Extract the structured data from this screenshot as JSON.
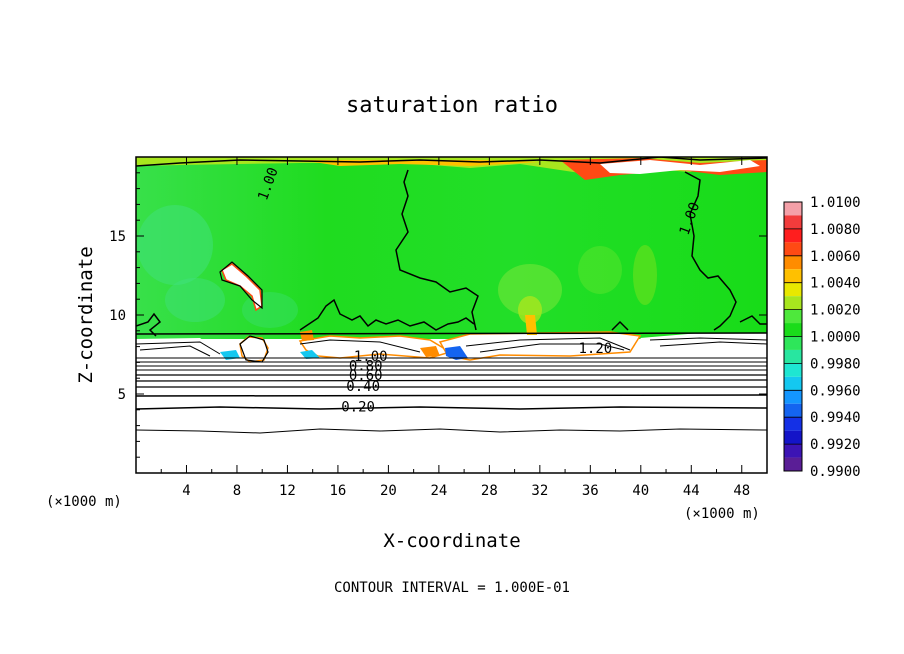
{
  "chart_data": {
    "type": "heatmap",
    "title": "saturation ratio",
    "xlabel": "X-coordinate",
    "ylabel": "Z-coordinate",
    "x_unit_left": "(×1000 m)",
    "x_unit_right": "(×1000 m)",
    "xlim": [
      0,
      50
    ],
    "ylim": [
      0,
      20
    ],
    "x_ticks": [
      4,
      8,
      12,
      16,
      20,
      24,
      28,
      32,
      36,
      40,
      44,
      48
    ],
    "y_ticks": [
      5,
      10,
      15
    ],
    "colorbar": {
      "min": 0.99,
      "max": 1.01,
      "labels": [
        "1.0100",
        "1.0080",
        "1.0060",
        "1.0040",
        "1.0020",
        "1.0000",
        "0.9980",
        "0.9960",
        "0.9940",
        "0.9920",
        "0.9900"
      ],
      "levels": [
        {
          "lo": 1.009,
          "hi": 1.01,
          "color": "#f4a0a8"
        },
        {
          "lo": 1.008,
          "hi": 1.009,
          "color": "#f23c3c"
        },
        {
          "lo": 1.007,
          "hi": 1.008,
          "color": "#ff1e1e"
        },
        {
          "lo": 1.006,
          "hi": 1.007,
          "color": "#ff4a14"
        },
        {
          "lo": 1.005,
          "hi": 1.006,
          "color": "#ff8c00"
        },
        {
          "lo": 1.004,
          "hi": 1.005,
          "color": "#ffc000"
        },
        {
          "lo": 1.003,
          "hi": 1.004,
          "color": "#e8e800"
        },
        {
          "lo": 1.002,
          "hi": 1.003,
          "color": "#a8e61e"
        },
        {
          "lo": 1.001,
          "hi": 1.002,
          "color": "#4ee83c"
        },
        {
          "lo": 1.0,
          "hi": 1.001,
          "color": "#1adc1a"
        },
        {
          "lo": 0.999,
          "hi": 1.0,
          "color": "#2ee65a"
        },
        {
          "lo": 0.998,
          "hi": 0.999,
          "color": "#28e6a0"
        },
        {
          "lo": 0.997,
          "hi": 0.998,
          "color": "#1ee6d2"
        },
        {
          "lo": 0.996,
          "hi": 0.997,
          "color": "#14c8f0"
        },
        {
          "lo": 0.995,
          "hi": 0.996,
          "color": "#1496ff"
        },
        {
          "lo": 0.994,
          "hi": 0.995,
          "color": "#1464f0"
        },
        {
          "lo": 0.993,
          "hi": 0.994,
          "color": "#1430e6"
        },
        {
          "lo": 0.992,
          "hi": 0.993,
          "color": "#1414c8"
        },
        {
          "lo": 0.991,
          "hi": 0.992,
          "color": "#3c14b4"
        },
        {
          "lo": 0.99,
          "hi": 0.991,
          "color": "#5a1e96"
        }
      ]
    },
    "contour_labels": [
      {
        "text": "1.00",
        "x": 10.8,
        "z": 18.2
      },
      {
        "text": "1.00",
        "x": 44.2,
        "z": 16.0
      },
      {
        "text": "1.20",
        "x": 36.4,
        "z": 7.6
      },
      {
        "text": "1.00",
        "x": 18.6,
        "z": 7.1
      },
      {
        "text": "0.80",
        "x": 18.2,
        "z": 6.5
      },
      {
        "text": "0.60",
        "x": 18.2,
        "z": 5.9
      },
      {
        "text": "0.40",
        "x": 18.0,
        "z": 5.2
      },
      {
        "text": "0.20",
        "x": 17.6,
        "z": 3.9
      }
    ],
    "footer": "CONTOUR INTERVAL = 1.000E-01"
  }
}
